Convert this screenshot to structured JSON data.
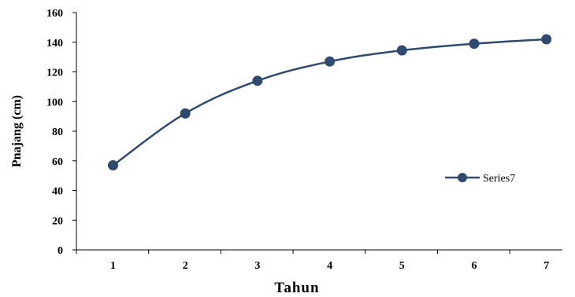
{
  "chart_data": {
    "type": "line",
    "title": "",
    "xlabel": "Tahun",
    "ylabel": "Pnajang (cm)",
    "categories": [
      "1",
      "2",
      "3",
      "4",
      "5",
      "6",
      "7"
    ],
    "series": [
      {
        "name": "Series7",
        "values": [
          57,
          92,
          114,
          127,
          134.5,
          139,
          142
        ],
        "color": "#2e4a6e"
      }
    ],
    "ylim": [
      0,
      160
    ],
    "yticks": [
      0,
      20,
      40,
      60,
      80,
      100,
      120,
      140,
      160
    ],
    "grid": false,
    "legend_position": "right",
    "smooth": true,
    "marker": "circle"
  }
}
